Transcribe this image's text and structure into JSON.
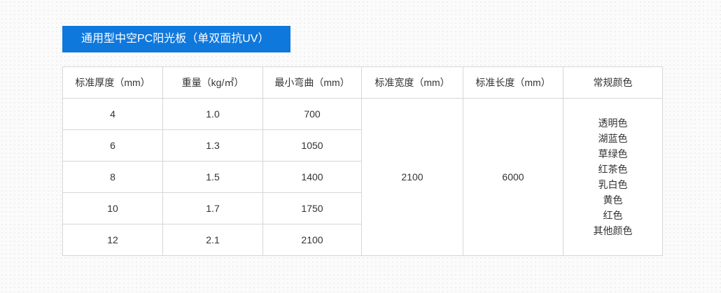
{
  "title": "通用型中空PC阳光板（单双面抗UV）",
  "colors": {
    "accent": "#0f78dc"
  },
  "table": {
    "headers": [
      "标准厚度（mm）",
      "重量（kg/㎡）",
      "最小弯曲（mm）",
      "标准宽度（mm）",
      "标准长度（mm）",
      "常规颜色"
    ],
    "rows": [
      {
        "thickness": "4",
        "weight": "1.0",
        "bend": "700"
      },
      {
        "thickness": "6",
        "weight": "1.3",
        "bend": "1050"
      },
      {
        "thickness": "8",
        "weight": "1.5",
        "bend": "1400"
      },
      {
        "thickness": "10",
        "weight": "1.7",
        "bend": "1750"
      },
      {
        "thickness": "12",
        "weight": "2.1",
        "bend": "2100"
      }
    ],
    "width": "2100",
    "length": "6000",
    "color_options": [
      "透明色",
      "湖蓝色",
      "草绿色",
      "红茶色",
      "乳白色",
      "黄色",
      "红色",
      "其他颜色"
    ]
  }
}
